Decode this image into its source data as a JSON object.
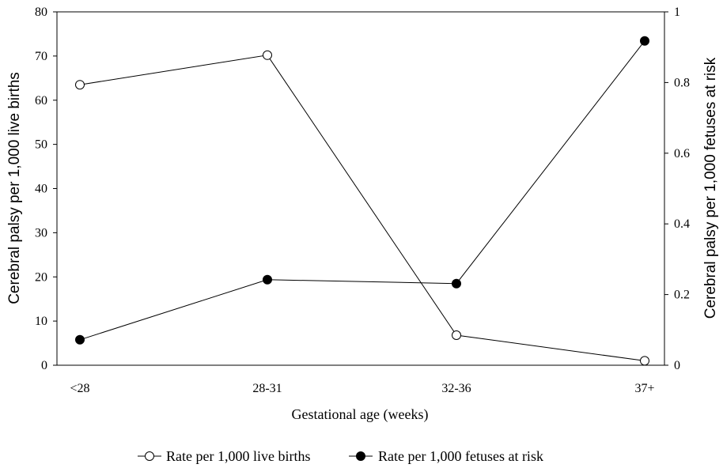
{
  "chart_data": {
    "type": "line",
    "categories": [
      "<28",
      "28-31",
      "32-36",
      "37+"
    ],
    "xlabel": "Gestational age (weeks)",
    "ylabel_left": "Cerebral palsy per 1,000 live births",
    "ylabel_right": "Cerebral palsy per 1,000 fetuses at risk",
    "ylim_left": [
      0,
      80
    ],
    "yticks_left": [
      "0",
      "10",
      "20",
      "30",
      "40",
      "50",
      "60",
      "70",
      "80"
    ],
    "ylim_right": [
      0,
      1
    ],
    "yticks_right": [
      "0",
      "0.2",
      "0.4",
      "0.6",
      "0.8",
      "1"
    ],
    "grid": false,
    "legend_position": "bottom",
    "series": [
      {
        "name": "Rate per 1,000 live births",
        "axis": "left",
        "marker": "open-circle",
        "values": [
          63.5,
          70.2,
          6.8,
          1.0
        ]
      },
      {
        "name": "Rate per 1,000 fetuses at risk",
        "axis": "right",
        "marker": "filled-circle",
        "values": [
          0.072,
          0.242,
          0.231,
          0.918
        ]
      }
    ],
    "colors": {
      "line": "#000000",
      "open_marker_fill": "#ffffff",
      "filled_marker_fill": "#000000"
    }
  }
}
